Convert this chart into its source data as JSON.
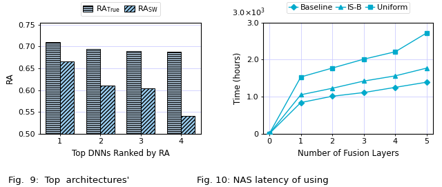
{
  "left": {
    "categories": [
      1,
      2,
      3,
      4
    ],
    "ra_true": [
      0.71,
      0.694,
      0.689,
      0.688
    ],
    "ra_sw": [
      0.665,
      0.61,
      0.604,
      0.54
    ],
    "ylim": [
      0.5,
      0.755
    ],
    "yticks": [
      0.5,
      0.55,
      0.6,
      0.65,
      0.7,
      0.75
    ],
    "xlabel": "Top DNNs Ranked by RA",
    "ylabel": "RA",
    "bar_color_true": "#cce8ff",
    "bar_color_sw": "#99ccee",
    "bar_edge_color": "#000000",
    "grid_color": "#ccccff",
    "hatch_true": "------",
    "hatch_sw": "//////",
    "legend_labels": [
      "RA$_{\\mathrm{True}}$",
      "RA$_{\\mathrm{SW}}$"
    ]
  },
  "right": {
    "x": [
      0,
      1,
      2,
      3,
      4,
      5
    ],
    "baseline": [
      0,
      840,
      1010,
      1110,
      1250,
      1390
    ],
    "isb": [
      0,
      1050,
      1225,
      1420,
      1560,
      1770
    ],
    "uniform": [
      0,
      1530,
      1770,
      2010,
      2210,
      2720
    ],
    "ylim": [
      0,
      3000
    ],
    "yticks": [
      0,
      1000,
      2000,
      3000
    ],
    "ytick_labels": [
      "0",
      "1.0",
      "2.0",
      "3.0"
    ],
    "xlim": [
      -0.2,
      5.2
    ],
    "xlabel": "Number of Fusion Layers",
    "ylabel": "Time (hours)",
    "line_color": "#00aacc",
    "grid_color": "#ccccff",
    "marker_baseline": "D",
    "marker_isb": "^",
    "marker_uniform": "s",
    "legend_labels": [
      "Baseline",
      "IS-B",
      "Uniform"
    ]
  },
  "caption_fontsize": 9.5,
  "axis_label_fontsize": 8.5,
  "tick_fontsize": 8,
  "legend_fontsize": 8
}
